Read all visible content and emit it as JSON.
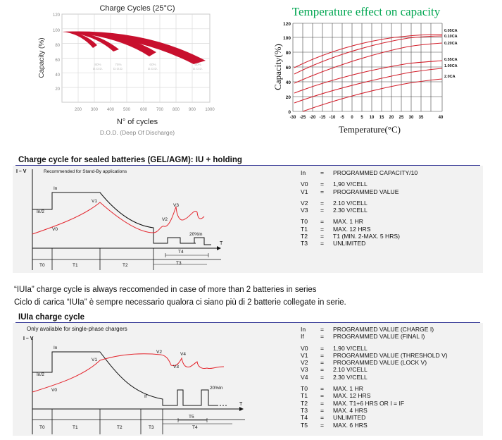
{
  "charge_cycles_chart": {
    "title": "Charge Cycles (25°C)",
    "ylabel": "Capacity (%)",
    "xlabel": "N° of cycles",
    "subxlabel": "D.O.D. (Deep Of Discharge)",
    "yticks": [
      "120",
      "100",
      "80",
      "60",
      "40",
      "20"
    ],
    "xticks": [
      "200",
      "300",
      "400",
      "500",
      "600",
      "700",
      "800",
      "900",
      "1000"
    ],
    "band_labels": [
      {
        "line1": "80%",
        "line2": "D.O.D."
      },
      {
        "line1": "75%",
        "line2": "D.O.D."
      },
      {
        "line1": "60%",
        "line2": "D.O.D."
      },
      {
        "line1": "50%",
        "line2": "D.O.D."
      }
    ],
    "band_color": "#c8102e"
  },
  "temperature_chart": {
    "title": "Temperature effect on capacity",
    "ylabel": "Capacity(%)",
    "xlabel": "Temperature(°C)",
    "yticks": [
      "120",
      "100",
      "80",
      "60",
      "40",
      "20",
      "0"
    ],
    "xticks": [
      "-30",
      "-25",
      "-20",
      "-15",
      "-10",
      "-5",
      "0",
      "5",
      "10",
      "15",
      "20",
      "25",
      "30",
      "35",
      "40"
    ],
    "series_labels": [
      "0.05CA",
      "0.10CA",
      "0.20CA",
      "0.55CA",
      "1.00CA",
      "2.0CA"
    ],
    "title_color": "#00a651",
    "line_color": "#d21f2b"
  },
  "section1": {
    "title": "Charge cycle for sealed batteries (GEL/AGM): IU + holding",
    "axis_label": "I – V",
    "subtitle": "Recommended for Stand-By applications",
    "labels": {
      "in": "In",
      "in2": "In/2",
      "v0": "V0",
      "v1": "V1",
      "v2": "V2",
      "v3": "V3",
      "pct": "20%In",
      "t": "T"
    },
    "phases": [
      "T0",
      "T1",
      "T2",
      "T3"
    ],
    "t4": "T4",
    "defs": [
      [
        {
          "k": "In",
          "v": "PROGRAMMED CAPACITY/10"
        }
      ],
      [
        {
          "k": "V0",
          "v": "1,90 V/CELL"
        },
        {
          "k": "V1",
          "v": "PROGRAMMED VALUE"
        }
      ],
      [
        {
          "k": "V2",
          "v": "2.10 V/CELL"
        },
        {
          "k": "V3",
          "v": "2.30 V/CELL"
        }
      ],
      [
        {
          "k": "T0",
          "v": "MAX. 1 HR"
        },
        {
          "k": "T1",
          "v": "MAX. 12 HRS"
        },
        {
          "k": "T2",
          "v": "T1 (MIN. 2-MAX. 5 HRS)"
        },
        {
          "k": "T3",
          "v": "UNLIMITED"
        }
      ]
    ]
  },
  "notes": [
    "“IUIa” charge cycle is always reccomended in case of more than 2 batteries in series",
    "Ciclo di carica “IUIa” è sempre necessario qualora ci siano più di 2 batterie collegate in serie."
  ],
  "section2": {
    "title": "IUIa charge cycle",
    "axis_label": "I – V",
    "subtitle": "Only available for single-phase chargers",
    "labels": {
      "in": "In",
      "in2": "In/2",
      "v0": "V0",
      "v1": "V1",
      "v2": "V2",
      "v3": "V3",
      "v4": "V4",
      "if": "If",
      "pct": "20%In",
      "t": "T"
    },
    "phases": [
      "T0",
      "T1",
      "T2",
      "T3"
    ],
    "t4": "T4",
    "t5": "T5",
    "defs": [
      [
        {
          "k": "In",
          "v": "PROGRAMMED VALUE (CHARGE I)"
        },
        {
          "k": "If",
          "v": "PROGRAMMED VALUE (FINAL I)"
        }
      ],
      [
        {
          "k": "V0",
          "v": "1,90 V/CELL"
        },
        {
          "k": "V1",
          "v": "PROGRAMMED VALUE (THRESHOLD V)"
        },
        {
          "k": "V2",
          "v": "PROGRAMMED VALUE (LOCK V)"
        },
        {
          "k": "V3",
          "v": "2.10 V/CELL"
        },
        {
          "k": "V4",
          "v": "2.30 V/CELL"
        }
      ],
      [
        {
          "k": "T0",
          "v": "MAX. 1 HR"
        },
        {
          "k": "T1",
          "v": "MAX. 12 HRS"
        },
        {
          "k": "T2",
          "v": "MAX. T1+6 HRS OR I = IF"
        },
        {
          "k": "T3",
          "v": "MAX. 4 HRS"
        },
        {
          "k": "T4",
          "v": "UNLIMITED"
        },
        {
          "k": "T5",
          "v": "MAX. 6 HRS"
        }
      ]
    ]
  }
}
